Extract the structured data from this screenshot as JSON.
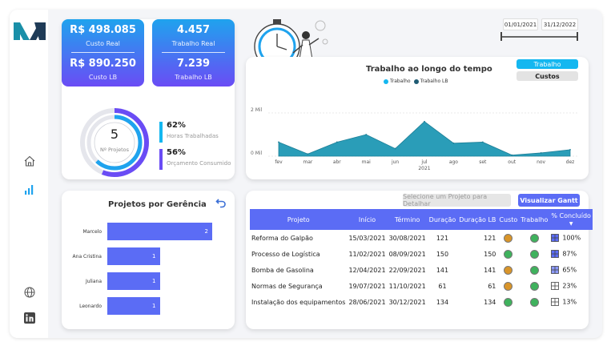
{
  "sidebar": {
    "icons": [
      "home-icon",
      "bar-chart-icon",
      "globe-icon",
      "linkedin-icon"
    ],
    "accent": "#1fa3ee"
  },
  "kpis": {
    "custo_real_value": "R$ 498.085",
    "custo_real_label": "Custo Real",
    "custo_lb_value": "R$ 890.250",
    "custo_lb_label": "Custo LB",
    "trabalho_real_value": "4.457",
    "trabalho_real_label": "Trabalho Real",
    "trabalho_lb_value": "7.239",
    "trabalho_lb_label": "Trabalho LB"
  },
  "projects_summary": {
    "count": "5",
    "count_label": "Nº Projetos",
    "horas_pct": "62%",
    "horas_label": "Horas Trabalhadas",
    "orcamento_pct": "56%",
    "orcamento_label": "Orçamento Consumido",
    "horas_fraction": 0.62,
    "orcamento_fraction": 0.56
  },
  "filters": {
    "date_start": "01/01/2021",
    "date_end": "31/12/2022"
  },
  "toggle": {
    "trabalho": "Trabalho",
    "custos": "Custos"
  },
  "chart_data": {
    "type": "area",
    "title": "Trabalho ao longo do tempo",
    "legend": [
      "Trabalho",
      "Trabalho LB"
    ],
    "legend_placement": "top-center",
    "categories": [
      "fev",
      "mar",
      "abr",
      "mai",
      "jun",
      "jul",
      "ago",
      "set",
      "out",
      "nov",
      "dez"
    ],
    "year_label": "2021",
    "y_ticks": [
      "0 Mil",
      "2 Mil"
    ],
    "ylim": [
      0,
      2000
    ],
    "series": [
      {
        "name": "Trabalho",
        "color": "#2a9db8",
        "values": [
          650,
          100,
          650,
          1000,
          350,
          1600,
          600,
          650,
          50,
          150,
          300
        ]
      }
    ]
  },
  "managers": {
    "title": "Projetos por Gerência",
    "chart_data": {
      "type": "bar",
      "categories": [
        "Marcelo",
        "Ana Cristina",
        "Juliana",
        "Leonardo"
      ],
      "values": [
        2,
        1,
        1,
        1
      ]
    }
  },
  "table": {
    "select_hint": "Selecione um Projeto para Detalhar",
    "gantt_button": "Visualizar Gantt",
    "headers": [
      "Projeto",
      "Início",
      "Término",
      "Duração",
      "Duração LB",
      "Custo",
      "Trabalho",
      "% Concluído"
    ],
    "rows": [
      {
        "projeto": "Reforma do Galpão",
        "inicio": "15/03/2021",
        "termino": "30/08/2021",
        "duracao": "121",
        "duracao_lb": "121",
        "custo": "#d9952a",
        "trabalho": "#3fb25d",
        "pct": "100%"
      },
      {
        "projeto": "Processo de Logística",
        "inicio": "11/02/2021",
        "termino": "08/09/2021",
        "duracao": "150",
        "duracao_lb": "150",
        "custo": "#3fb25d",
        "trabalho": "#3fb25d",
        "pct": "87%"
      },
      {
        "projeto": "Bomba de Gasolina",
        "inicio": "12/04/2021",
        "termino": "22/09/2021",
        "duracao": "141",
        "duracao_lb": "141",
        "custo": "#d9952a",
        "trabalho": "#3fb25d",
        "pct": "65%"
      },
      {
        "projeto": "Normas de Segurança",
        "inicio": "19/07/2021",
        "termino": "11/10/2021",
        "duracao": "61",
        "duracao_lb": "61",
        "custo": "#d9952a",
        "trabalho": "#3fb25d",
        "pct": "23%"
      },
      {
        "projeto": "Instalação dos equipamentos",
        "inicio": "28/06/2021",
        "termino": "30/12/2021",
        "duracao": "134",
        "duracao_lb": "134",
        "custo": "#3fb25d",
        "trabalho": "#3fb25d",
        "pct": "13%"
      }
    ]
  }
}
